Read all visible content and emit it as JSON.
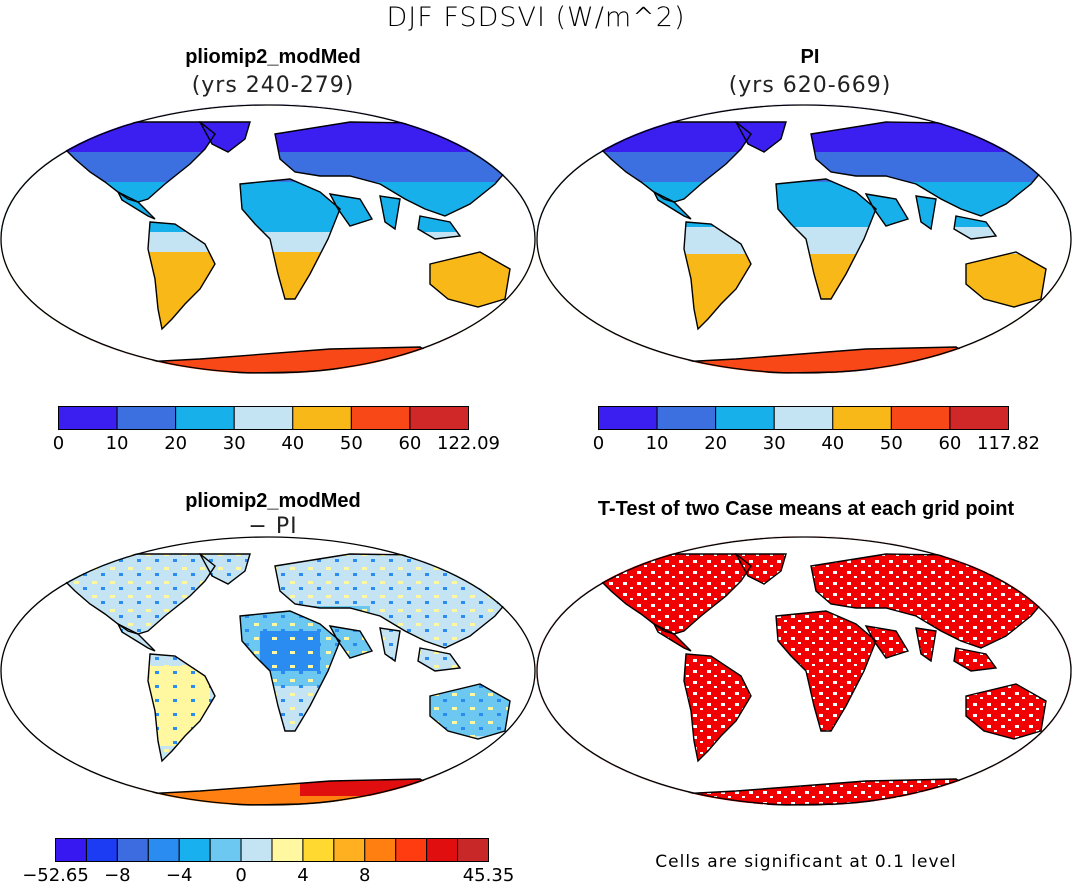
{
  "title": "DJF FSDSVI (W/m^2)",
  "panels": {
    "case": {
      "title": "pliomip2_modMed",
      "subtitle": "(yrs 240-279)"
    },
    "control": {
      "title": "PI",
      "subtitle": "(yrs 620-669)"
    },
    "diff": {
      "title": "pliomip2_modMed",
      "subtitle": "− PI"
    },
    "ttest": {
      "title": "T-Test of two Case means at each grid point"
    }
  },
  "colorbars": {
    "case": {
      "labels": [
        "0",
        "10",
        "20",
        "30",
        "40",
        "50",
        "60",
        "122.09"
      ],
      "colors": [
        "#3b1ef0",
        "#3c6fe0",
        "#18b0ea",
        "#c4e4f4",
        "#f8b818",
        "#f84818",
        "#d02828"
      ]
    },
    "control": {
      "labels": [
        "0",
        "10",
        "20",
        "30",
        "40",
        "50",
        "60",
        "117.82"
      ],
      "colors": [
        "#3b1ef0",
        "#3c6fe0",
        "#18b0ea",
        "#c4e4f4",
        "#f8b818",
        "#f84818",
        "#d02828"
      ]
    },
    "diff": {
      "labels": [
        "−52.65",
        "−8",
        "−4",
        "0",
        "4",
        "8",
        "45.35"
      ],
      "colors": [
        "#3818f0",
        "#1c3cf4",
        "#3c6ce0",
        "#2a8cf0",
        "#18b0ee",
        "#6cc8f0",
        "#c4e4f4",
        "#fff8a0",
        "#ffd830",
        "#ffb020",
        "#ff8010",
        "#ff3c10",
        "#e00e0e",
        "#c82828"
      ]
    }
  },
  "significance_note": "Cells are significant at 0.1 level"
}
